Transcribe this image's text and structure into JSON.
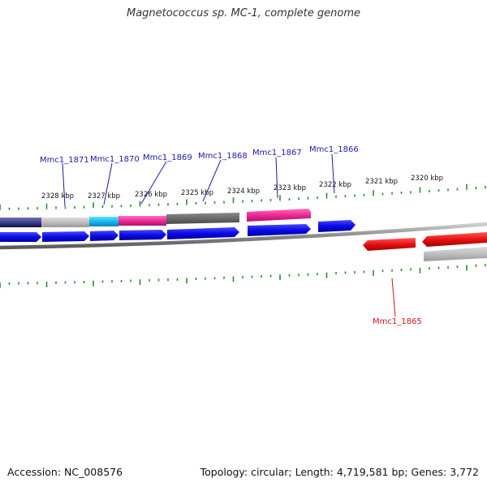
{
  "title": "Magnetococcus sp. MC-1, complete genome",
  "footer": {
    "accession": "Accession: NC_008576",
    "summary": "Topology: circular; Length: 4,719,581 bp; Genes: 3,772"
  },
  "scale": {
    "labels": [
      "2328 kbp",
      "2327 kbp",
      "2326 kbp",
      "2325 kbp",
      "2324 kbp",
      "2323 kbp",
      "2322 kbp",
      "2321 kbp",
      "2320 kbp"
    ]
  },
  "gene_labels": [
    {
      "id": "Mmc1_1871",
      "strand": "forward"
    },
    {
      "id": "Mmc1_1870",
      "strand": "forward"
    },
    {
      "id": "Mmc1_1869",
      "strand": "forward"
    },
    {
      "id": "Mmc1_1868",
      "strand": "forward"
    },
    {
      "id": "Mmc1_1867",
      "strand": "forward"
    },
    {
      "id": "Mmc1_1866",
      "strand": "forward"
    },
    {
      "id": "Mmc1_1865",
      "strand": "reverse"
    }
  ],
  "colors": {
    "forward_gene": "#0a0ae8",
    "reverse_gene": "#e81010",
    "forward_label": "#1a1aa8",
    "reverse_label": "#d01515",
    "backbone": "#8a8a8a",
    "tick": "#2e8b2e"
  }
}
